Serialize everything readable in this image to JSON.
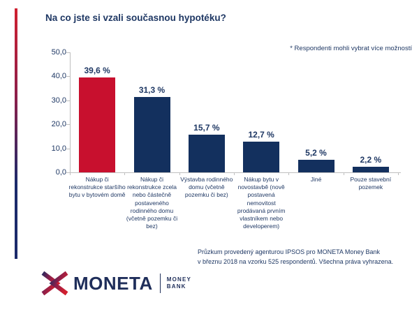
{
  "colors": {
    "navy_text": "#1f3864",
    "bar_red": "#c8102e",
    "bar_navy": "#13305e",
    "accent_top": "#d02030",
    "accent_bottom": "#1b2a6b",
    "axis_gray": "#bfbfbf"
  },
  "header": {
    "title": "Na co jste si vzali současnou hypotéku?"
  },
  "chart_data": {
    "type": "bar",
    "title": "Na co jste si vzali současnou hypotéku?",
    "note": "* Respondenti mohli vybrat více možností",
    "categories": [
      "Nákup či rekonstrukce staršího bytu v bytovém domě",
      "Nákup či rekonstrukce zcela nebo částečně postaveného rodinného domu (včetně pozemku či bez)",
      "Výstavba rodinného domu (včetně pozemku či bez)",
      "Nákup bytu v novostavbě (nově postavená nemovitost prodávaná prvním vlastníkem nebo developerem)",
      "Jiné",
      "Pouze stavební pozemek"
    ],
    "values": [
      39.6,
      31.3,
      15.7,
      12.7,
      5.2,
      2.2
    ],
    "value_labels": [
      "39,6 %",
      "31,3 %",
      "15,7 %",
      "12,7 %",
      "5,2 %",
      "2,2 %"
    ],
    "bar_colors": [
      "#c8102e",
      "#13305e",
      "#13305e",
      "#13305e",
      "#13305e",
      "#13305e"
    ],
    "ylim": [
      0,
      50
    ],
    "ytick_values": [
      0,
      10,
      20,
      30,
      40,
      50
    ],
    "ytick_labels": [
      "0,0",
      "10,0",
      "20,0",
      "30,0",
      "40,0",
      "50,0"
    ],
    "xlabel": "",
    "ylabel": "",
    "grid": false,
    "legend": false
  },
  "footer": {
    "line1": "Průzkum provedený agenturou IPSOS pro MONETA Money Bank",
    "line2": "v březnu 2018 na vzorku 525 respondentů. Všechna práva vyhrazena."
  },
  "logo": {
    "brand": "MONETA",
    "subline1": "MONEY",
    "subline2": "BANK"
  }
}
